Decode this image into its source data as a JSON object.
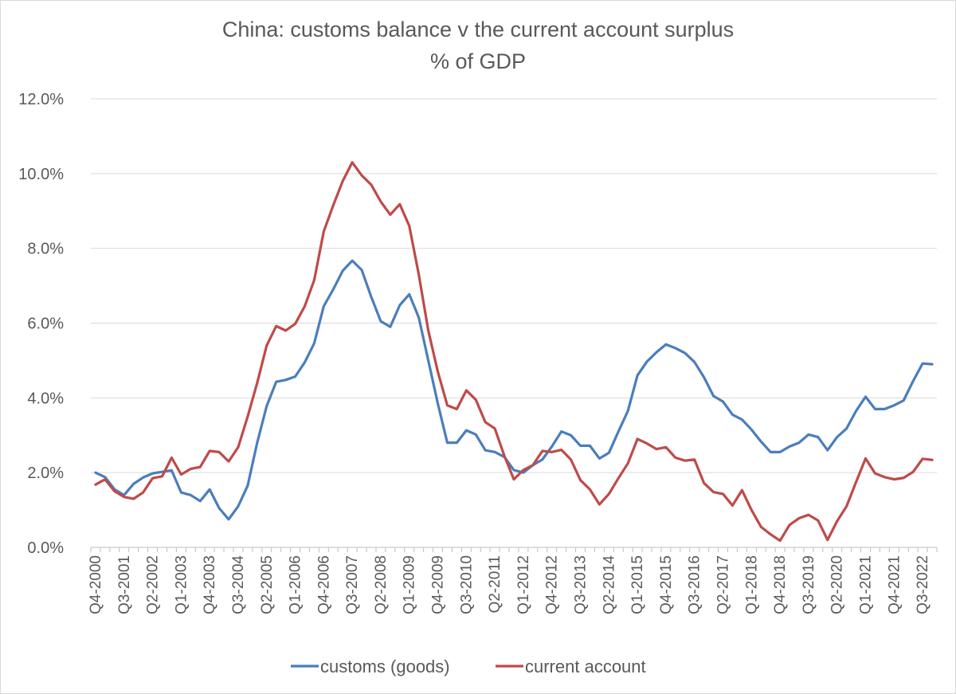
{
  "chart_data": {
    "type": "line",
    "title": "China: customs balance v the current account surplus",
    "subtitle": "% of GDP",
    "xlabel": "",
    "ylabel": "",
    "ylim": [
      0,
      0.12
    ],
    "ytick_values": [
      0,
      0.02,
      0.04,
      0.06,
      0.08,
      0.1,
      0.12
    ],
    "ytick_labels": [
      "0.0%",
      "2.0%",
      "4.0%",
      "6.0%",
      "8.0%",
      "10.0%",
      "12.0%"
    ],
    "grid": true,
    "legend_position": "bottom",
    "x": [
      "Q4-2000",
      "Q1-2001",
      "Q2-2001",
      "Q3-2001",
      "Q4-2001",
      "Q1-2002",
      "Q2-2002",
      "Q3-2002",
      "Q4-2002",
      "Q1-2003",
      "Q2-2003",
      "Q3-2003",
      "Q4-2003",
      "Q1-2004",
      "Q2-2004",
      "Q3-2004",
      "Q4-2004",
      "Q1-2005",
      "Q2-2005",
      "Q3-2005",
      "Q4-2005",
      "Q1-2006",
      "Q2-2006",
      "Q3-2006",
      "Q4-2006",
      "Q1-2007",
      "Q2-2007",
      "Q3-2007",
      "Q4-2007",
      "Q1-2008",
      "Q2-2008",
      "Q3-2008",
      "Q4-2008",
      "Q1-2009",
      "Q2-2009",
      "Q3-2009",
      "Q4-2009",
      "Q1-2010",
      "Q2-2010",
      "Q3-2010",
      "Q4-2010",
      "Q1-2011",
      "Q2-2011",
      "Q3-2011",
      "Q4-2011",
      "Q1-2012",
      "Q2-2012",
      "Q3-2012",
      "Q4-2012",
      "Q1-2013",
      "Q2-2013",
      "Q3-2013",
      "Q4-2013",
      "Q1-2014",
      "Q2-2014",
      "Q3-2014",
      "Q4-2014",
      "Q1-2015",
      "Q2-2015",
      "Q3-2015",
      "Q4-2015",
      "Q1-2016",
      "Q2-2016",
      "Q3-2016",
      "Q4-2016",
      "Q1-2017",
      "Q2-2017",
      "Q3-2017",
      "Q4-2017",
      "Q1-2018",
      "Q2-2018",
      "Q3-2018",
      "Q4-2018",
      "Q1-2019",
      "Q2-2019",
      "Q3-2019",
      "Q4-2019",
      "Q1-2020",
      "Q2-2020",
      "Q3-2020",
      "Q4-2020",
      "Q1-2021",
      "Q2-2021",
      "Q3-2021",
      "Q4-2021",
      "Q1-2022",
      "Q2-2022",
      "Q3-2022",
      "Q4-2022"
    ],
    "x_tick_labels": [
      "Q4-2000",
      "Q3-2001",
      "Q2-2002",
      "Q1-2003",
      "Q4-2003",
      "Q3-2004",
      "Q2-2005",
      "Q1-2006",
      "Q4-2006",
      "Q3-2007",
      "Q2-2008",
      "Q1-2009",
      "Q4-2009",
      "Q3-2010",
      "Q2-2011",
      "Q1-2012",
      "Q4-2012",
      "Q3-2013",
      "Q2-2014",
      "Q1-2015",
      "Q4-2015",
      "Q3-2016",
      "Q2-2017",
      "Q1-2018",
      "Q4-2018",
      "Q3-2019",
      "Q2-2020",
      "Q1-2021",
      "Q4-2021",
      "Q3-2022"
    ],
    "series": [
      {
        "name": "customs (goods)",
        "color": "#4a7ebb",
        "values": [
          0.02,
          0.0188,
          0.0155,
          0.014,
          0.017,
          0.0187,
          0.0198,
          0.0202,
          0.0206,
          0.0147,
          0.014,
          0.0124,
          0.0155,
          0.0105,
          0.0075,
          0.011,
          0.0165,
          0.028,
          0.0378,
          0.0443,
          0.0448,
          0.0457,
          0.0495,
          0.0546,
          0.0645,
          0.069,
          0.074,
          0.0767,
          0.0742,
          0.067,
          0.0605,
          0.059,
          0.0648,
          0.0677,
          0.0615,
          0.05,
          0.0385,
          0.028,
          0.028,
          0.0313,
          0.0302,
          0.026,
          0.0255,
          0.0242,
          0.0207,
          0.02,
          0.022,
          0.0235,
          0.027,
          0.031,
          0.03,
          0.0272,
          0.0272,
          0.0238,
          0.0253,
          0.031,
          0.0365,
          0.046,
          0.0497,
          0.0522,
          0.0543,
          0.0533,
          0.052,
          0.0496,
          0.0455,
          0.0405,
          0.039,
          0.0355,
          0.0342,
          0.0315,
          0.0283,
          0.0255,
          0.0255,
          0.027,
          0.028,
          0.0302,
          0.0295,
          0.026,
          0.0295,
          0.0318,
          0.0365,
          0.0403,
          0.037,
          0.037,
          0.038,
          0.0393,
          0.0445,
          0.0492,
          0.049
        ]
      },
      {
        "name": "current account",
        "color": "#be4b48",
        "values": [
          0.0168,
          0.0182,
          0.015,
          0.0135,
          0.013,
          0.0147,
          0.0185,
          0.019,
          0.024,
          0.0195,
          0.021,
          0.0215,
          0.0258,
          0.0255,
          0.023,
          0.0268,
          0.035,
          0.044,
          0.054,
          0.0592,
          0.058,
          0.0598,
          0.0645,
          0.0715,
          0.0845,
          0.0915,
          0.098,
          0.103,
          0.0995,
          0.097,
          0.0925,
          0.089,
          0.0918,
          0.086,
          0.073,
          0.058,
          0.047,
          0.038,
          0.037,
          0.042,
          0.0395,
          0.0335,
          0.0318,
          0.0245,
          0.0182,
          0.0207,
          0.022,
          0.0258,
          0.0255,
          0.0261,
          0.0235,
          0.018,
          0.0155,
          0.0115,
          0.0143,
          0.0185,
          0.0225,
          0.029,
          0.0278,
          0.0263,
          0.0268,
          0.024,
          0.0232,
          0.0235,
          0.0172,
          0.0148,
          0.0143,
          0.0112,
          0.0153,
          0.01,
          0.0055,
          0.0035,
          0.0018,
          0.006,
          0.0078,
          0.0087,
          0.0072,
          0.002,
          0.007,
          0.011,
          0.0175,
          0.0238,
          0.0198,
          0.0188,
          0.0182,
          0.0186,
          0.0202,
          0.0237,
          0.0234
        ]
      }
    ]
  }
}
